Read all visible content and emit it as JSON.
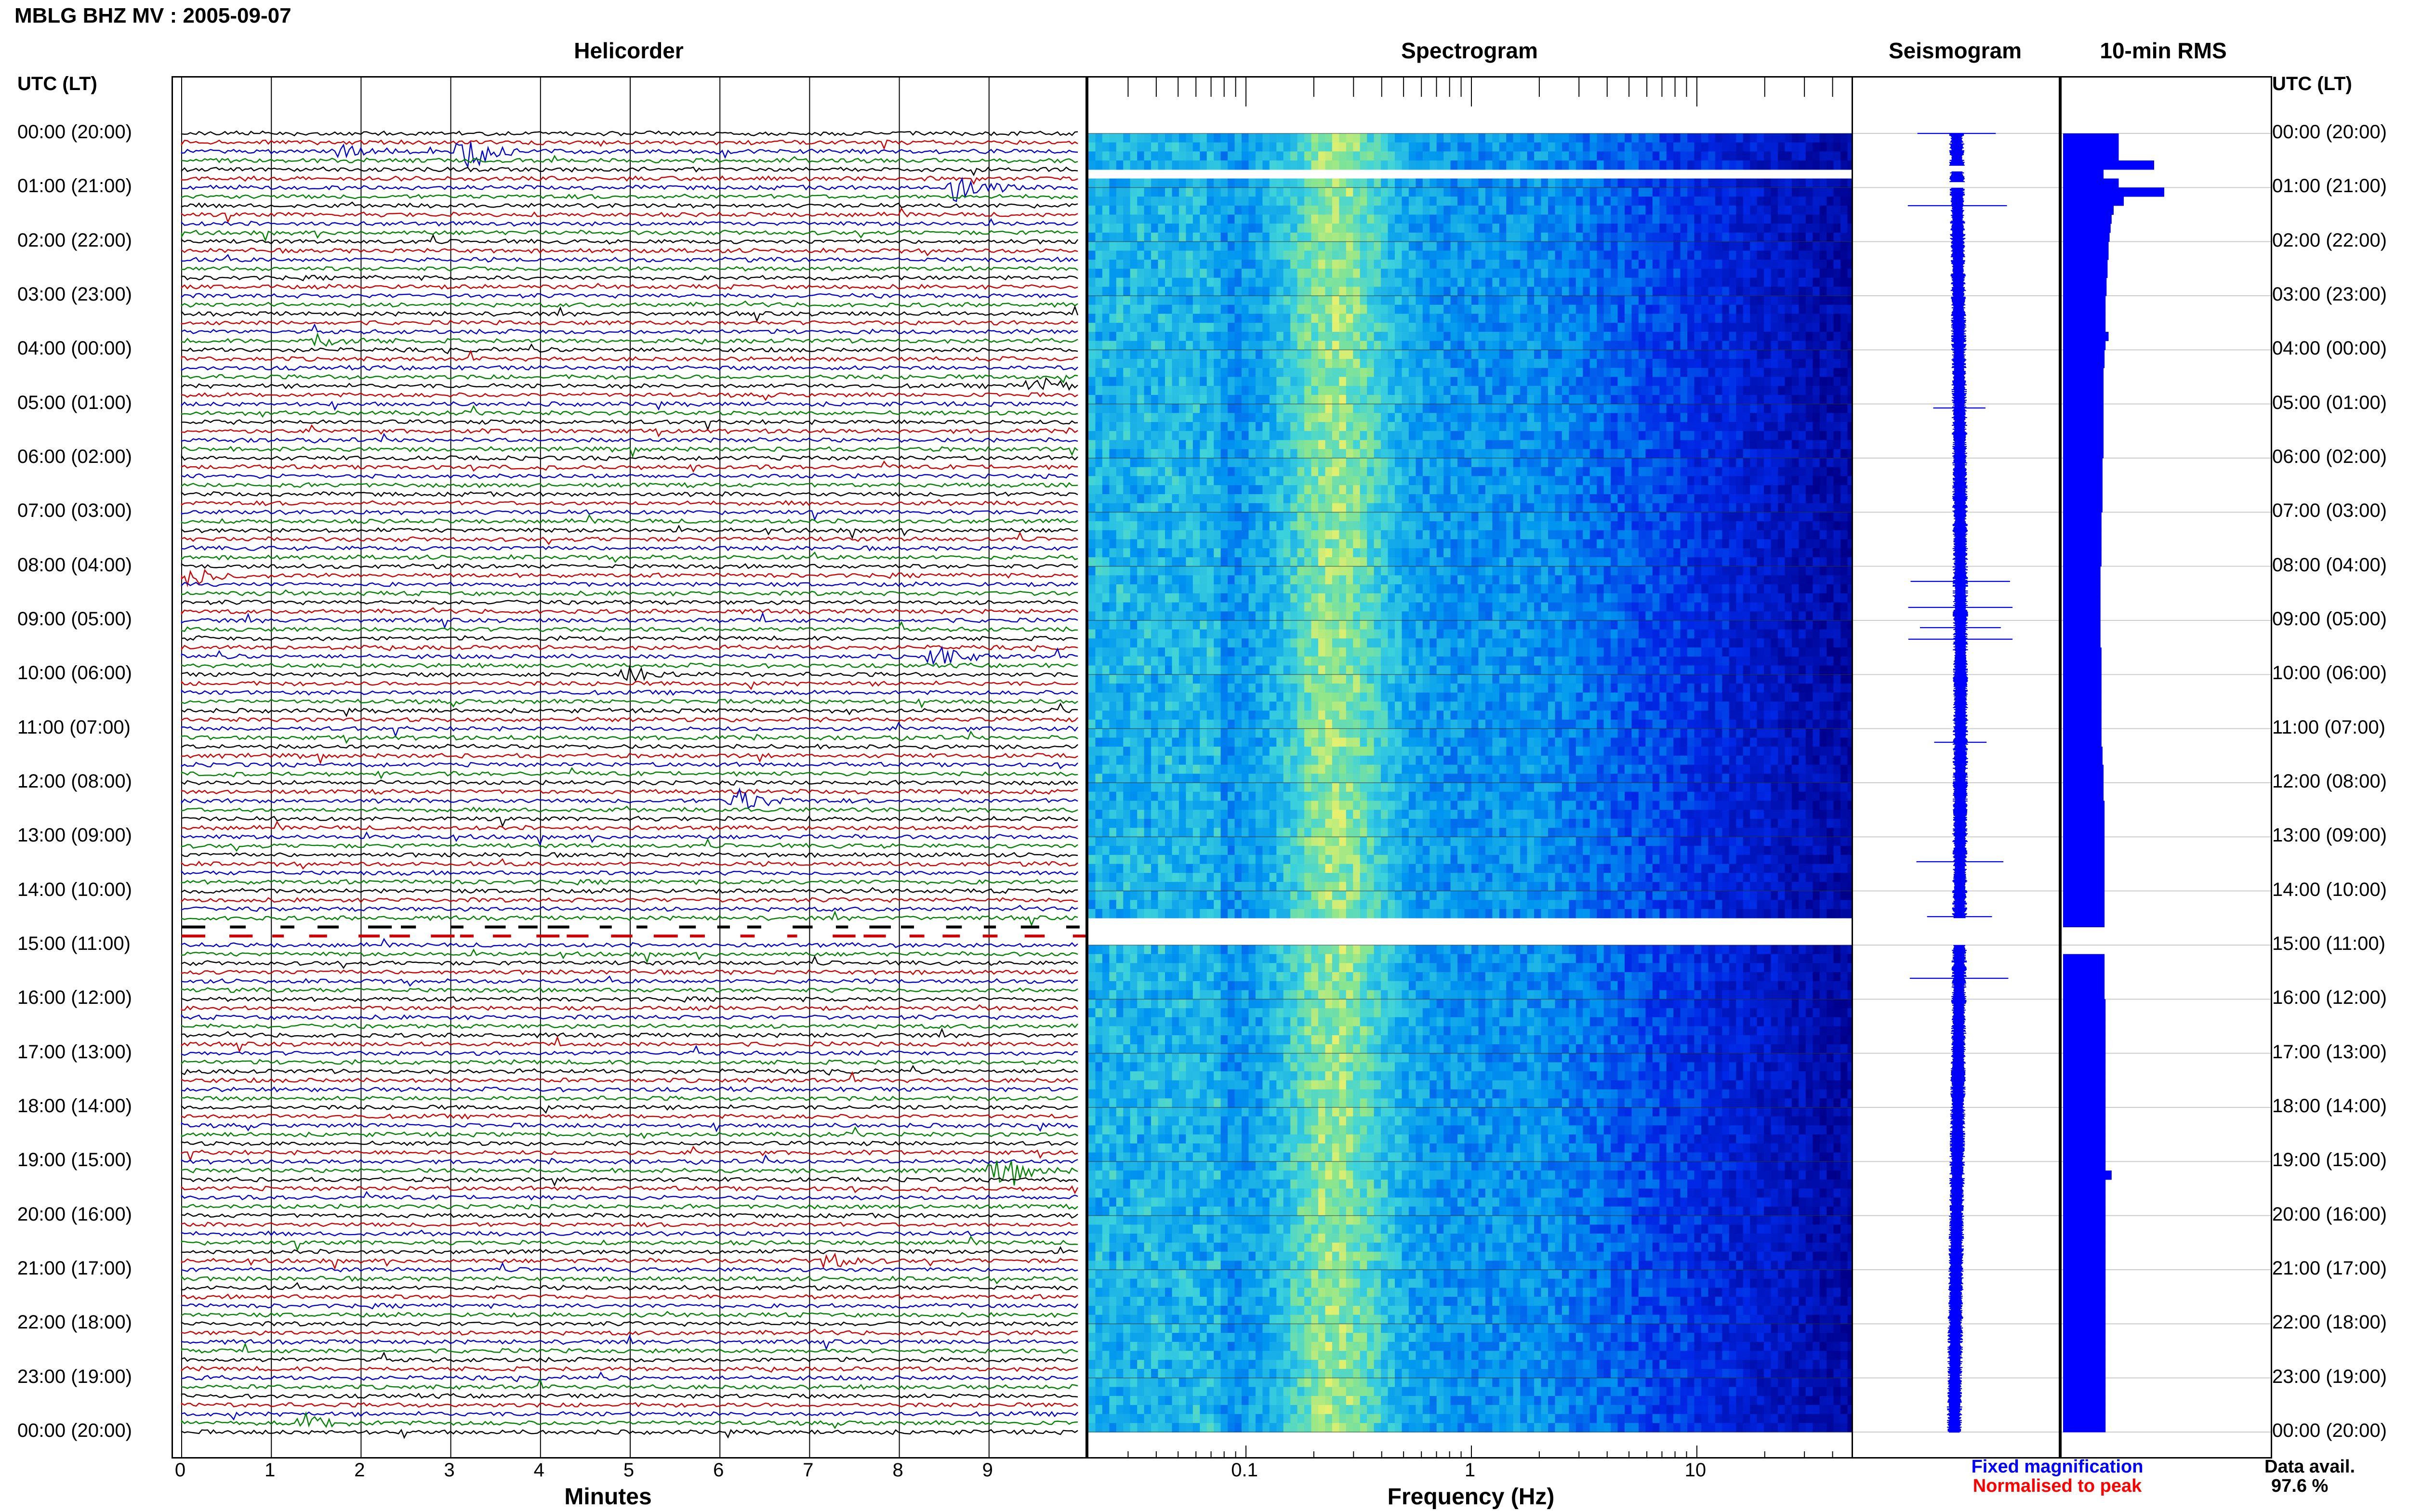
{
  "title": "MBLG BHZ MV : 2005-09-07",
  "panels": {
    "helicorder": "Helicorder",
    "spectrogram": "Spectrogram",
    "seismogram": "Seismogram",
    "rms": "10-min RMS"
  },
  "time_axis": {
    "header": "UTC (LT)",
    "labels": [
      "00:00 (20:00)",
      "01:00 (21:00)",
      "02:00 (22:00)",
      "03:00 (23:00)",
      "04:00 (00:00)",
      "05:00 (01:00)",
      "06:00 (02:00)",
      "07:00 (03:00)",
      "08:00 (04:00)",
      "09:00 (05:00)",
      "10:00 (06:00)",
      "11:00 (07:00)",
      "12:00 (08:00)",
      "13:00 (09:00)",
      "14:00 (10:00)",
      "15:00 (11:00)",
      "16:00 (12:00)",
      "17:00 (13:00)",
      "18:00 (14:00)",
      "19:00 (15:00)",
      "20:00 (16:00)",
      "21:00 (17:00)",
      "22:00 (18:00)",
      "23:00 (19:00)",
      "00:00 (20:00)"
    ]
  },
  "helicorder_axis": {
    "xlabel": "Minutes",
    "ticks": [
      "0",
      "1",
      "2",
      "3",
      "4",
      "5",
      "6",
      "7",
      "8",
      "9"
    ]
  },
  "spectrogram_axis": {
    "xlabel": "Frequency (Hz)",
    "ticks": [
      "0.1",
      "1",
      "10"
    ]
  },
  "legend": {
    "fixed": "Fixed magnification",
    "normalised": "Normalised to peak",
    "fixed_color": "#0000ff",
    "normalised_color": "#ff0000"
  },
  "availability": {
    "label": "Data avail.",
    "value": "97.6 %"
  },
  "colors": {
    "trace_cycle": [
      "#000000",
      "#cc0000",
      "#0000cc",
      "#008000"
    ],
    "spectrogram_low": "#00008b",
    "spectrogram_high": "#ffff66",
    "rms_bar": "#0000ff",
    "seismogram": "#0000ff"
  },
  "chart_data": {
    "type": "heatmap",
    "title": "MBLG BHZ MV : 2005-09-07",
    "helicorder": {
      "minutes_per_line": 10,
      "lines_per_hour": 6,
      "hours": 24,
      "x_range": [
        0,
        10
      ],
      "color_cycle": [
        "black",
        "red",
        "blue",
        "green"
      ],
      "events_minutes": [
        {
          "line": 2,
          "minute": 3.2,
          "amp": 1.0
        },
        {
          "line": 2,
          "minute": 1.8,
          "amp": 0.35
        },
        {
          "line": 6,
          "minute": 8.6,
          "amp": 1.0
        },
        {
          "line": 23,
          "minute": 1.5,
          "amp": 0.4
        },
        {
          "line": 28,
          "minute": 9.5,
          "amp": 0.6
        },
        {
          "line": 49,
          "minute": 0.1,
          "amp": 0.6
        },
        {
          "line": 58,
          "minute": 8.4,
          "amp": 0.6
        },
        {
          "line": 60,
          "minute": 5.0,
          "amp": 0.5
        },
        {
          "line": 74,
          "minute": 6.2,
          "amp": 0.7
        },
        {
          "line": 115,
          "minute": 9.1,
          "amp": 0.9
        },
        {
          "line": 125,
          "minute": 7.2,
          "amp": 0.45
        },
        {
          "line": 143,
          "minute": 1.4,
          "amp": 0.5
        }
      ],
      "gaps": [
        {
          "from_line": 88,
          "to_line": 89
        }
      ]
    },
    "spectrogram": {
      "xlabel": "Frequency (Hz)",
      "x_scale": "log",
      "x_range": [
        0.02,
        50
      ],
      "peak_frequency_hz": 0.25,
      "data_gaps_utc_hours": [
        [
          0.6,
          0.7
        ],
        [
          0.9,
          1.0
        ],
        [
          14.5,
          15.0
        ]
      ]
    },
    "rms_10min": [
      0.55,
      0.55,
      0.55,
      0.9,
      0.4,
      0.55,
      1.0,
      0.6,
      0.5,
      0.48,
      0.47,
      0.46,
      0.45,
      0.45,
      0.44,
      0.44,
      0.43,
      0.43,
      0.42,
      0.42,
      0.42,
      0.42,
      0.45,
      0.42,
      0.41,
      0.41,
      0.4,
      0.4,
      0.4,
      0.4,
      0.4,
      0.4,
      0.4,
      0.4,
      0.4,
      0.4,
      0.39,
      0.39,
      0.39,
      0.39,
      0.39,
      0.39,
      0.38,
      0.38,
      0.38,
      0.38,
      0.38,
      0.38,
      0.37,
      0.37,
      0.37,
      0.37,
      0.37,
      0.37,
      0.37,
      0.37,
      0.37,
      0.38,
      0.38,
      0.38,
      0.38,
      0.38,
      0.38,
      0.38,
      0.38,
      0.38,
      0.38,
      0.38,
      0.39,
      0.39,
      0.4,
      0.4,
      0.4,
      0.4,
      0.41,
      0.41,
      0.41,
      0.41,
      0.41,
      0.41,
      0.41,
      0.41,
      0.41,
      0.41,
      0.41,
      0.41,
      0.41,
      0.41,
      0.0,
      0.0,
      0.0,
      0.41,
      0.41,
      0.41,
      0.41,
      0.41,
      0.42,
      0.42,
      0.42,
      0.42,
      0.42,
      0.42,
      0.42,
      0.42,
      0.42,
      0.42,
      0.42,
      0.42,
      0.42,
      0.42,
      0.42,
      0.42,
      0.42,
      0.42,
      0.42,
      0.48,
      0.42,
      0.42,
      0.42,
      0.42,
      0.42,
      0.42,
      0.42,
      0.42,
      0.42,
      0.42,
      0.42,
      0.42,
      0.42,
      0.42,
      0.42,
      0.42,
      0.42,
      0.42,
      0.42,
      0.42,
      0.42,
      0.42,
      0.42,
      0.42,
      0.42,
      0.42,
      0.42,
      0.42
    ]
  }
}
